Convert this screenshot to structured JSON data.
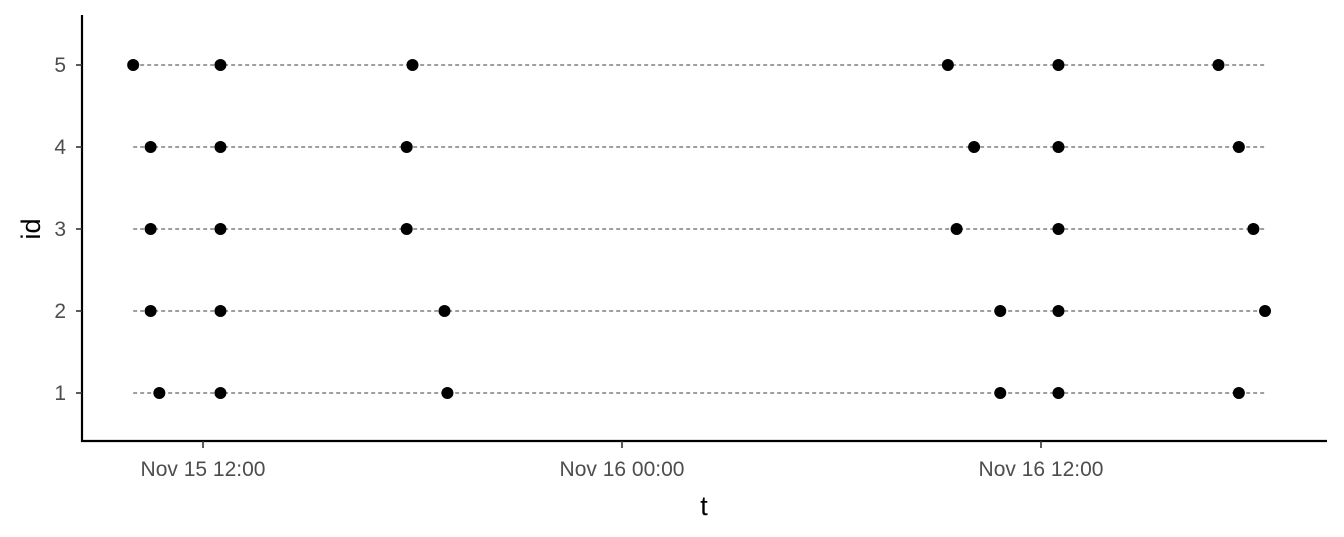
{
  "chart_data": {
    "type": "scatter",
    "title": "",
    "xlabel": "t",
    "ylabel": "id",
    "x_tick_labels": [
      {
        "value": "2015-11-15 12:00",
        "label": "Nov 15 12:00"
      },
      {
        "value": "2015-11-16 00:00",
        "label": "Nov 16 00:00"
      },
      {
        "value": "2015-11-16 12:00",
        "label": "Nov 16 12:00"
      }
    ],
    "y_tick_labels": [
      "1",
      "2",
      "3",
      "4",
      "5"
    ],
    "xlim": [
      "2015-11-15 08:30",
      "2015-11-16 20:40"
    ],
    "ylim": [
      0.43,
      5.6
    ],
    "grid": false,
    "guide_lines": [
      {
        "id": 1,
        "x_start": "2015-11-15 10:00",
        "x_end": "2015-11-16 18:25"
      },
      {
        "id": 2,
        "x_start": "2015-11-15 10:00",
        "x_end": "2015-11-16 18:25"
      },
      {
        "id": 3,
        "x_start": "2015-11-15 10:00",
        "x_end": "2015-11-16 18:25"
      },
      {
        "id": 4,
        "x_start": "2015-11-15 10:00",
        "x_end": "2015-11-16 18:25"
      },
      {
        "id": 5,
        "x_start": "2015-11-15 10:00",
        "x_end": "2015-11-16 18:25"
      }
    ],
    "points": [
      {
        "id": 5,
        "t": "2015-11-15 10:00"
      },
      {
        "id": 5,
        "t": "2015-11-15 12:30"
      },
      {
        "id": 5,
        "t": "2015-11-15 18:00"
      },
      {
        "id": 5,
        "t": "2015-11-16 09:20"
      },
      {
        "id": 5,
        "t": "2015-11-16 12:30"
      },
      {
        "id": 5,
        "t": "2015-11-16 17:05"
      },
      {
        "id": 4,
        "t": "2015-11-15 10:30"
      },
      {
        "id": 4,
        "t": "2015-11-15 12:30"
      },
      {
        "id": 4,
        "t": "2015-11-15 17:50"
      },
      {
        "id": 4,
        "t": "2015-11-16 10:05"
      },
      {
        "id": 4,
        "t": "2015-11-16 12:30"
      },
      {
        "id": 4,
        "t": "2015-11-16 17:40"
      },
      {
        "id": 3,
        "t": "2015-11-15 10:30"
      },
      {
        "id": 3,
        "t": "2015-11-15 12:30"
      },
      {
        "id": 3,
        "t": "2015-11-15 17:50"
      },
      {
        "id": 3,
        "t": "2015-11-16 09:35"
      },
      {
        "id": 3,
        "t": "2015-11-16 12:30"
      },
      {
        "id": 3,
        "t": "2015-11-16 18:05"
      },
      {
        "id": 2,
        "t": "2015-11-15 10:30"
      },
      {
        "id": 2,
        "t": "2015-11-15 12:30"
      },
      {
        "id": 2,
        "t": "2015-11-15 18:55"
      },
      {
        "id": 2,
        "t": "2015-11-16 10:50"
      },
      {
        "id": 2,
        "t": "2015-11-16 12:30"
      },
      {
        "id": 2,
        "t": "2015-11-16 18:25"
      },
      {
        "id": 1,
        "t": "2015-11-15 10:45"
      },
      {
        "id": 1,
        "t": "2015-11-15 12:30"
      },
      {
        "id": 1,
        "t": "2015-11-15 19:00"
      },
      {
        "id": 1,
        "t": "2015-11-16 10:50"
      },
      {
        "id": 1,
        "t": "2015-11-16 12:30"
      },
      {
        "id": 1,
        "t": "2015-11-16 17:40"
      }
    ]
  }
}
